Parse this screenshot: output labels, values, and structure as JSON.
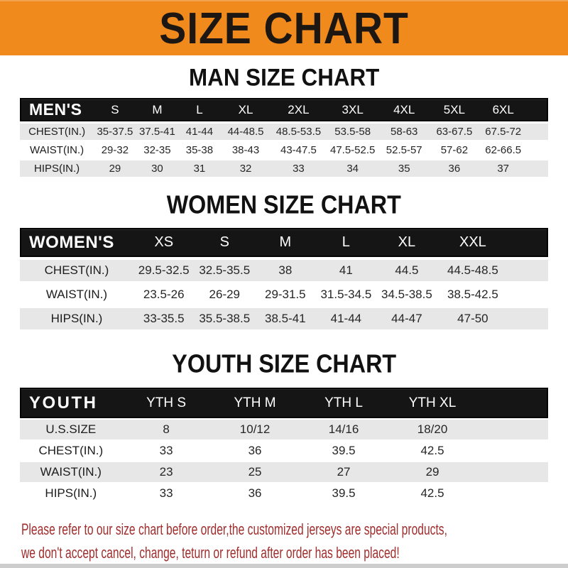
{
  "banner": {
    "title": "SIZE CHART"
  },
  "sections": [
    {
      "heading": "MAN SIZE CHART",
      "table": {
        "corner": "MEN'S",
        "columns": [
          "S",
          "M",
          "L",
          "XL",
          "2XL",
          "3XL",
          "4XL",
          "5XL",
          "6XL"
        ],
        "rows": [
          {
            "label": "CHEST(IN.)",
            "values": [
              "35-37.5",
              "37.5-41",
              "41-44",
              "44-48.5",
              "48.5-53.5",
              "53.5-58",
              "58-63",
              "63-67.5",
              "67.5-72"
            ]
          },
          {
            "label": "WAIST(IN.)",
            "values": [
              "29-32",
              "32-35",
              "35-38",
              "38-43",
              "43-47.5",
              "47.5-52.5",
              "52.5-57",
              "57-62",
              "62-66.5"
            ]
          },
          {
            "label": "HIPS(IN.)",
            "values": [
              "29",
              "30",
              "31",
              "32",
              "33",
              "34",
              "35",
              "36",
              "37"
            ]
          }
        ]
      }
    },
    {
      "heading": "WOMEN SIZE CHART",
      "table": {
        "corner": "WOMEN'S",
        "columns": [
          "XS",
          "S",
          "M",
          "L",
          "XL",
          "XXL"
        ],
        "rows": [
          {
            "label": "CHEST(IN.)",
            "values": [
              "29.5-32.5",
              "32.5-35.5",
              "38",
              "41",
              "44.5",
              "44.5-48.5"
            ]
          },
          {
            "label": "WAIST(IN.)",
            "values": [
              "23.5-26",
              "26-29",
              "29-31.5",
              "31.5-34.5",
              "34.5-38.5",
              "38.5-42.5"
            ]
          },
          {
            "label": "HIPS(IN.)",
            "values": [
              "33-35.5",
              "35.5-38.5",
              "38.5-41",
              "41-44",
              "44-47",
              "47-50"
            ]
          }
        ]
      }
    },
    {
      "heading": "YOUTH SIZE CHART",
      "table": {
        "corner": "YOUTH",
        "columns": [
          "YTH S",
          "YTH M",
          "YTH L",
          "YTH XL"
        ],
        "rows": [
          {
            "label": "U.S.SIZE",
            "values": [
              "8",
              "10/12",
              "14/16",
              "18/20"
            ]
          },
          {
            "label": "CHEST(IN.)",
            "values": [
              "33",
              "36",
              "39.5",
              "42.5"
            ]
          },
          {
            "label": "WAIST(IN.)",
            "values": [
              "23",
              "25",
              "27",
              "29"
            ]
          },
          {
            "label": "HIPS(IN.)",
            "values": [
              "33",
              "36",
              "39.5",
              "42.5"
            ]
          }
        ]
      }
    }
  ],
  "footer": {
    "line1": "Please refer to our size chart before order,the customized jerseys are special products,",
    "line2": "we don't accept cancel, change, teturn or refund after order has been placed!"
  },
  "colors": {
    "banner-orange": "#F08A1D",
    "header-black": "#151515",
    "row-gray": "#E7E7E7",
    "footer-red": "#A12D2D",
    "bottom-strip": "#CDCDCD"
  }
}
